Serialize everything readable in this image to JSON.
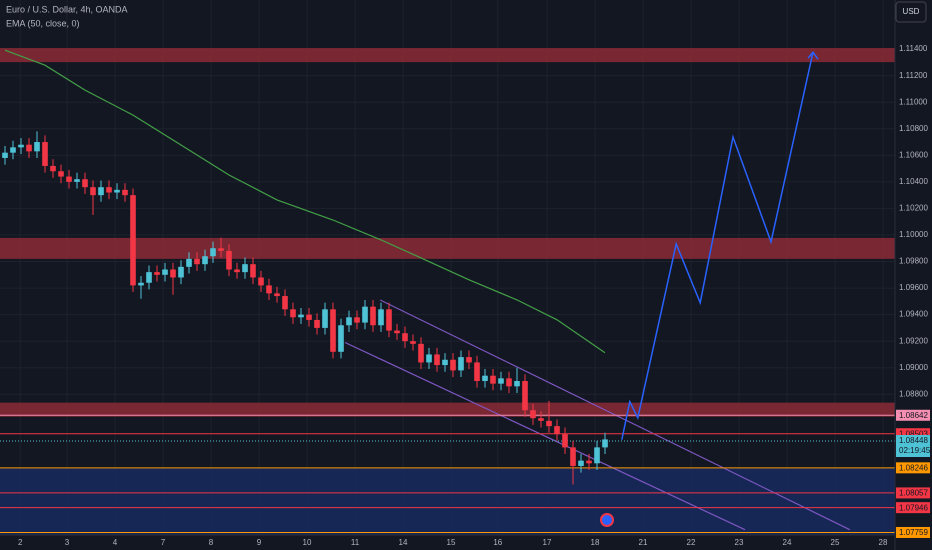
{
  "chart_data": {
    "type": "candlestick",
    "title": "Euro / U.S. Dollar, 4h, OANDA",
    "currency": "USD",
    "up_color": "#4fc3d6",
    "down_color": "#f23645",
    "open": [
      1.1058,
      1.1062,
      1.1066,
      1.1068,
      1.1063,
      1.107,
      1.1052,
      1.1048,
      1.1044,
      1.104,
      1.1042,
      1.1036,
      1.103,
      1.1036,
      1.1032,
      1.1034,
      1.103,
      1.0962,
      1.0964,
      1.0972,
      1.097,
      1.0974,
      1.0968,
      1.0976,
      1.0982,
      1.0978,
      1.0984,
      1.099,
      1.0988,
      1.0974,
      1.0972,
      1.0978,
      1.0968,
      1.0962,
      1.0956,
      1.0954,
      1.0944,
      1.0938,
      1.094,
      1.0936,
      1.093,
      1.0944,
      1.0912,
      1.0932,
      1.0938,
      1.0934,
      1.0946,
      1.0932,
      1.0944,
      1.0928,
      1.0926,
      1.092,
      1.0918,
      1.0904,
      1.091,
      1.0902,
      1.0906,
      1.0898,
      1.0908,
      1.0904,
      1.089,
      1.0894,
      1.0888,
      1.0892,
      1.0886,
      1.089,
      1.0868,
      1.0862,
      1.086,
      1.0856,
      1.085,
      1.084,
      1.0826,
      1.083,
      1.0828,
      1.084
    ],
    "close": [
      1.1062,
      1.1066,
      1.1068,
      1.1063,
      1.107,
      1.1052,
      1.1048,
      1.1044,
      1.104,
      1.1042,
      1.1036,
      1.103,
      1.1036,
      1.1032,
      1.1034,
      1.103,
      1.0962,
      1.0964,
      1.0972,
      1.097,
      1.0974,
      1.0968,
      1.0976,
      1.0982,
      1.0978,
      1.0984,
      1.099,
      1.0988,
      1.0974,
      1.0972,
      1.0978,
      1.0968,
      1.0962,
      1.0956,
      1.0954,
      1.0944,
      1.0938,
      1.094,
      1.0936,
      1.093,
      1.0944,
      1.0912,
      1.0932,
      1.0938,
      1.0934,
      1.0946,
      1.0932,
      1.0944,
      1.0928,
      1.0926,
      1.092,
      1.0918,
      1.0904,
      1.091,
      1.0902,
      1.0906,
      1.0898,
      1.0908,
      1.0904,
      1.089,
      1.0894,
      1.0888,
      1.0892,
      1.0886,
      1.089,
      1.0868,
      1.0862,
      1.086,
      1.0856,
      1.085,
      1.084,
      1.0826,
      1.083,
      1.0828,
      1.084,
      1.0846
    ],
    "high": [
      1.1067,
      1.1071,
      1.1073,
      1.1073,
      1.1078,
      1.1075,
      1.1057,
      1.1053,
      1.1049,
      1.1047,
      1.1047,
      1.1041,
      1.1041,
      1.1041,
      1.1039,
      1.1039,
      1.1035,
      1.0969,
      1.0977,
      1.0977,
      1.0979,
      1.0979,
      1.0981,
      1.0987,
      1.0987,
      1.0989,
      1.0995,
      1.0998,
      1.0993,
      1.0979,
      1.0983,
      1.0983,
      1.0973,
      1.0967,
      1.0961,
      1.0959,
      1.0949,
      1.0945,
      1.0945,
      1.0941,
      1.0949,
      1.0949,
      1.0937,
      1.0943,
      1.0943,
      1.0951,
      1.0951,
      1.0949,
      1.0949,
      1.0933,
      1.0931,
      1.0925,
      1.0923,
      1.0915,
      1.0915,
      1.0911,
      1.0911,
      1.0913,
      1.0913,
      1.0909,
      1.0899,
      1.0899,
      1.0897,
      1.0897,
      1.09,
      1.0895,
      1.0873,
      1.0867,
      1.0875,
      1.0861,
      1.0855,
      1.0845,
      1.0835,
      1.0835,
      1.0845,
      1.0851
    ],
    "low": [
      1.1053,
      1.1057,
      1.1061,
      1.1058,
      1.1058,
      1.1047,
      1.1043,
      1.1039,
      1.1035,
      1.1035,
      1.1031,
      1.1015,
      1.1025,
      1.1027,
      1.1027,
      1.1025,
      1.0957,
      1.0952,
      1.0959,
      1.0965,
      1.0965,
      1.0955,
      1.0963,
      1.0971,
      1.0973,
      1.0973,
      1.0979,
      1.0983,
      1.0969,
      1.0967,
      1.0967,
      1.0963,
      1.0957,
      1.0951,
      1.0949,
      1.0939,
      1.0933,
      1.0933,
      1.0931,
      1.0925,
      1.0925,
      1.0907,
      1.0907,
      1.0927,
      1.0929,
      1.0929,
      1.0927,
      1.0927,
      1.0923,
      1.0921,
      1.0915,
      1.0913,
      1.0899,
      1.0899,
      1.0897,
      1.0897,
      1.0893,
      1.0893,
      1.0899,
      1.0885,
      1.0885,
      1.0883,
      1.0883,
      1.0881,
      1.0881,
      1.0863,
      1.0857,
      1.0855,
      1.0851,
      1.0845,
      1.0835,
      1.0812,
      1.0821,
      1.0823,
      1.0823,
      1.0835
    ],
    "ema": {
      "name": "EMA (50, close, 0)",
      "color": "#43a047",
      "x": [
        0,
        5,
        10,
        16,
        22,
        28,
        34,
        41,
        47,
        52,
        58,
        64,
        69,
        75
      ],
      "values": [
        1.11392,
        1.11279,
        1.11091,
        1.10903,
        1.10678,
        1.10452,
        1.10264,
        1.10113,
        1.09963,
        1.09827,
        1.09662,
        1.09511,
        1.09361,
        1.09113
      ]
    },
    "projection": {
      "color": "#2962ff",
      "x": [
        77.1,
        78.1,
        79.1,
        83.9,
        86.9,
        91,
        95.75,
        101
      ],
      "values": [
        1.08458,
        1.08744,
        1.08623,
        1.09933,
        1.09489,
        1.10738,
        1.09948,
        1.11377
      ]
    },
    "channel": {
      "color": "#7e57c2",
      "lines": [
        {
          "x": [
            46.9,
            105.6
          ],
          "values": [
            1.0951,
            1.0778
          ]
        },
        {
          "x": [
            42.5,
            92.5
          ],
          "values": [
            1.0919,
            1.0778
          ]
        }
      ]
    },
    "zones": [
      {
        "top": 1.11408,
        "bottom": 1.11302,
        "color": "#8c2a35"
      },
      {
        "top": 1.09978,
        "bottom": 1.0982,
        "color": "#8c2a35"
      },
      {
        "top": 1.08737,
        "bottom": 1.08631,
        "color": "#8c2a35"
      },
      {
        "top": 1.08247,
        "bottom": 1.0774,
        "color": "#172a5e"
      }
    ],
    "levels": [
      {
        "value": 1.08642,
        "color": "#f48fb1"
      },
      {
        "value": 1.08503,
        "color": "#f23645"
      },
      {
        "value": 1.08246,
        "color": "#ff9800"
      },
      {
        "value": 1.08057,
        "color": "#f23645"
      },
      {
        "value": 1.07946,
        "color": "#f23645"
      },
      {
        "value": 1.07759,
        "color": "#ff9800"
      }
    ],
    "current": {
      "value": 1.08448,
      "countdown": "02:19:45",
      "color": "#4fc3d6"
    },
    "xlim": [
      -0.625,
      111.25
    ],
    "xticks": [
      {
        "value": 1.9,
        "label": "2"
      },
      {
        "value": 7.75,
        "label": "3"
      },
      {
        "value": 13.75,
        "label": "4"
      },
      {
        "value": 19.75,
        "label": "7"
      },
      {
        "value": 25.75,
        "label": "8"
      },
      {
        "value": 31.75,
        "label": "9"
      },
      {
        "value": 37.75,
        "label": "10"
      },
      {
        "value": 43.75,
        "label": "11"
      },
      {
        "value": 49.75,
        "label": "14"
      },
      {
        "value": 55.75,
        "label": "15"
      },
      {
        "value": 61.6,
        "label": "16"
      },
      {
        "value": 67.75,
        "label": "17"
      },
      {
        "value": 73.75,
        "label": "18"
      },
      {
        "value": 79.75,
        "label": "21"
      },
      {
        "value": 85.75,
        "label": "22"
      },
      {
        "value": 91.75,
        "label": "23"
      },
      {
        "value": 97.75,
        "label": "24"
      },
      {
        "value": 103.75,
        "label": "25"
      },
      {
        "value": 109.75,
        "label": "28"
      }
    ],
    "ylim": [
      1.0774,
      1.1177
    ],
    "yticks": [
      {
        "value": 1.114,
        "label": "1.11400"
      },
      {
        "value": 1.112,
        "label": "1.11200"
      },
      {
        "value": 1.11,
        "label": "1.11000"
      },
      {
        "value": 1.108,
        "label": "1.10800"
      },
      {
        "value": 1.106,
        "label": "1.10600"
      },
      {
        "value": 1.104,
        "label": "1.10400"
      },
      {
        "value": 1.102,
        "label": "1.10200"
      },
      {
        "value": 1.1,
        "label": "1.10000"
      },
      {
        "value": 1.098,
        "label": "1.09800"
      },
      {
        "value": 1.096,
        "label": "1.09600"
      },
      {
        "value": 1.094,
        "label": "1.09400"
      },
      {
        "value": 1.092,
        "label": "1.09200"
      },
      {
        "value": 1.09,
        "label": "1.09000"
      },
      {
        "value": 1.088,
        "label": "1.08800"
      }
    ],
    "grid": true
  }
}
